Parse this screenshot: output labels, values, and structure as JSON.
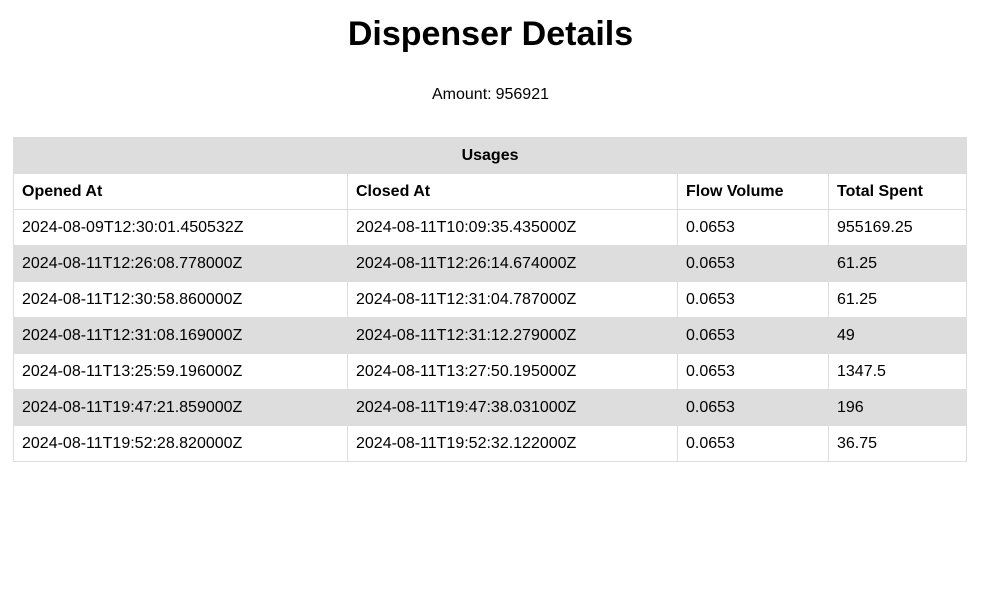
{
  "page": {
    "title": "Dispenser Details",
    "amount_label": "Amount:",
    "amount_value": "956921"
  },
  "usages": {
    "caption": "Usages",
    "columns": [
      "Opened At",
      "Closed At",
      "Flow Volume",
      "Total Spent"
    ],
    "rows": [
      [
        "2024-08-09T12:30:01.450532Z",
        "2024-08-11T10:09:35.435000Z",
        "0.0653",
        "955169.25"
      ],
      [
        "2024-08-11T12:26:08.778000Z",
        "2024-08-11T12:26:14.674000Z",
        "0.0653",
        "61.25"
      ],
      [
        "2024-08-11T12:30:58.860000Z",
        "2024-08-11T12:31:04.787000Z",
        "0.0653",
        "61.25"
      ],
      [
        "2024-08-11T12:31:08.169000Z",
        "2024-08-11T12:31:12.279000Z",
        "0.0653",
        "49"
      ],
      [
        "2024-08-11T13:25:59.196000Z",
        "2024-08-11T13:27:50.195000Z",
        "0.0653",
        "1347.5"
      ],
      [
        "2024-08-11T19:47:21.859000Z",
        "2024-08-11T19:47:38.031000Z",
        "0.0653",
        "196"
      ],
      [
        "2024-08-11T19:52:28.820000Z",
        "2024-08-11T19:52:32.122000Z",
        "0.0653",
        "36.75"
      ]
    ]
  },
  "colors": {
    "stripe": "#dddddd",
    "border": "#dddddd",
    "text": "#000000",
    "background": "#ffffff"
  }
}
